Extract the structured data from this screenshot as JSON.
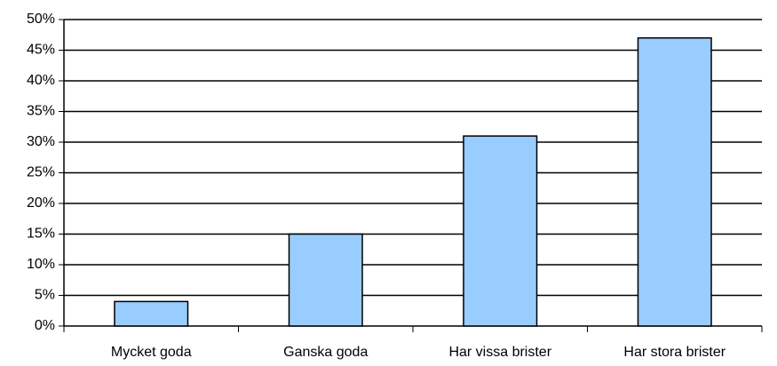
{
  "chart_data": {
    "type": "bar",
    "categories": [
      "Mycket goda",
      "Ganska goda",
      "Har vissa brister",
      "Har stora brister"
    ],
    "values": [
      4,
      15,
      31,
      47
    ],
    "color": "#99ccff",
    "ylim": [
      0,
      50
    ],
    "yticks": [
      {
        "value": 0,
        "label": "0%"
      },
      {
        "value": 5,
        "label": "5%"
      },
      {
        "value": 10,
        "label": "10%"
      },
      {
        "value": 15,
        "label": "15%"
      },
      {
        "value": 20,
        "label": "20%"
      },
      {
        "value": 25,
        "label": "25%"
      },
      {
        "value": 30,
        "label": "30%"
      },
      {
        "value": 35,
        "label": "35%"
      },
      {
        "value": 40,
        "label": "40%"
      },
      {
        "value": 45,
        "label": "45%"
      },
      {
        "value": 50,
        "label": "50%"
      }
    ],
    "grid": true
  }
}
